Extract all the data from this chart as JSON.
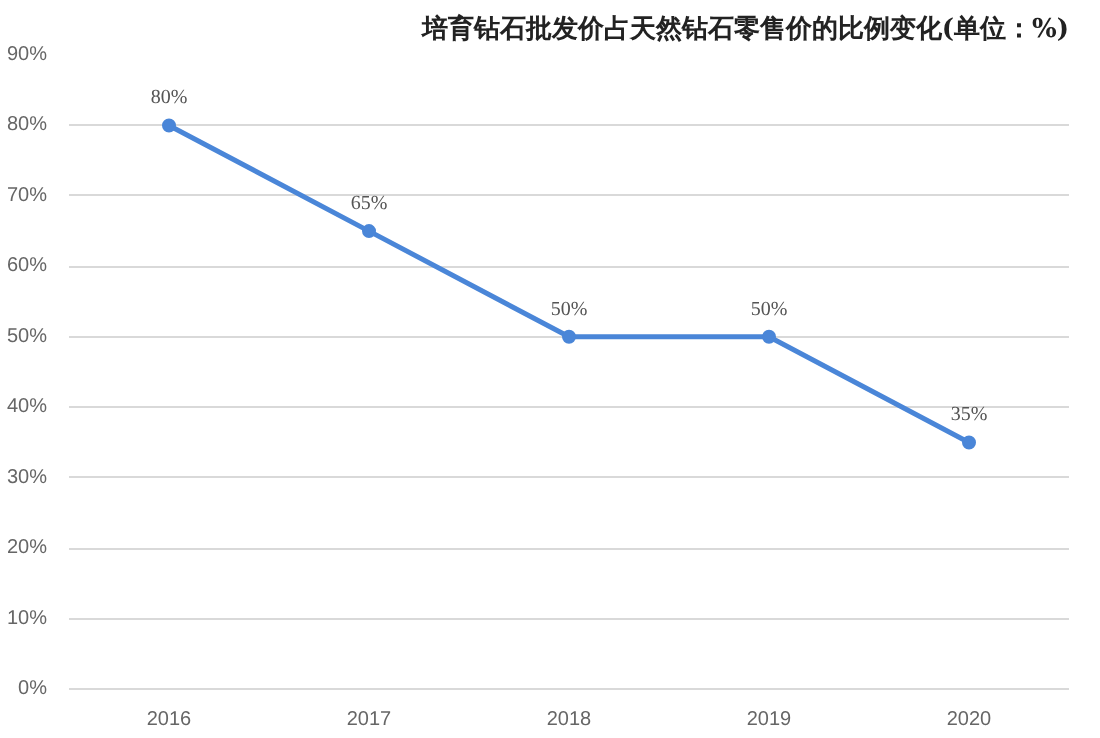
{
  "chart_data": {
    "type": "line",
    "title": "培育钻石批发价占天然钻石零售价的比例变化(单位：%)",
    "categories": [
      "2016",
      "2017",
      "2018",
      "2019",
      "2020"
    ],
    "series": [
      {
        "color": "#4a86d8",
        "values": [
          80,
          65,
          50,
          50,
          35
        ],
        "value_labels": [
          "80%",
          "65%",
          "50%",
          "50%",
          "35%"
        ]
      }
    ],
    "ylim": [
      0,
      90
    ],
    "yticks": [
      {
        "value": 0,
        "label": "0%"
      },
      {
        "value": 10,
        "label": "10%"
      },
      {
        "value": 20,
        "label": "20%"
      },
      {
        "value": 30,
        "label": "30%"
      },
      {
        "value": 40,
        "label": "40%"
      },
      {
        "value": 50,
        "label": "50%"
      },
      {
        "value": 60,
        "label": "60%"
      },
      {
        "value": 70,
        "label": "70%"
      },
      {
        "value": 80,
        "label": "80%"
      },
      {
        "value": 90,
        "label": "90%"
      }
    ],
    "grid": "y",
    "marker": "circle",
    "line_style": "solid"
  }
}
